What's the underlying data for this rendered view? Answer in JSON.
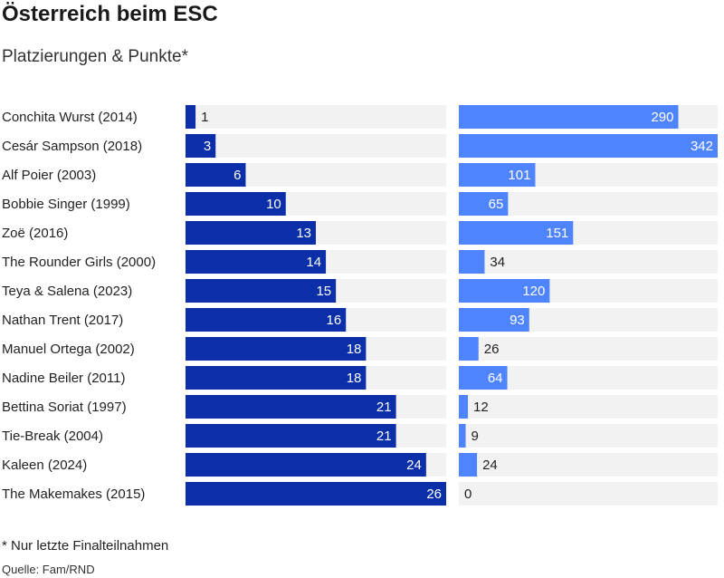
{
  "header": {
    "title": "Österreich beim ESC",
    "subtitle": "Platzierungen & Punkte*"
  },
  "footer": {
    "note": "* Nur letzte Finalteilnahmen",
    "source": "Quelle: Fam/RND"
  },
  "colors": {
    "placement_bar": "#0a2fa8",
    "points_bar": "#4f84ff",
    "track": "#f2f2f2",
    "text_inside": "#ffffff",
    "text_outside": "#222222"
  },
  "chart_data": {
    "type": "bar",
    "orientation": "horizontal",
    "categories": [
      "Conchita Wurst (2014)",
      "Cesár Sampson (2018)",
      "Alf Poier (2003)",
      "Bobbie Singer (1999)",
      "Zoë (2016)",
      "The Rounder Girls (2000)",
      "Teya & Salena (2023)",
      "Nathan Trent (2017)",
      "Manuel Ortega (2002)",
      "Nadine Beiler (2011)",
      "Bettina Soriat (1997)",
      "Tie-Break (2004)",
      "Kaleen (2024)",
      "The Makemakes (2015)"
    ],
    "series": [
      {
        "values": [
          1,
          3,
          6,
          10,
          13,
          14,
          15,
          16,
          18,
          18,
          21,
          21,
          24,
          26
        ],
        "xlim": [
          0,
          26
        ]
      },
      {
        "values": [
          290,
          342,
          101,
          65,
          151,
          34,
          120,
          93,
          26,
          64,
          12,
          9,
          24,
          0
        ],
        "xlim": [
          0,
          342
        ]
      }
    ]
  }
}
